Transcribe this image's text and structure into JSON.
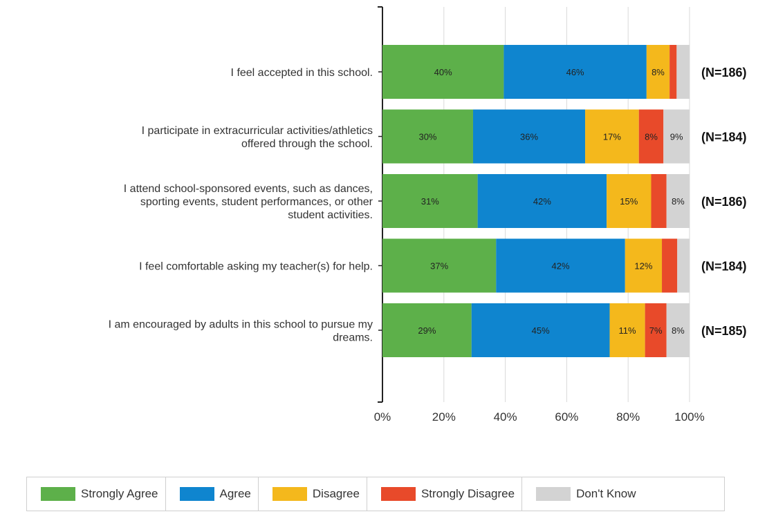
{
  "chart_data": {
    "type": "bar",
    "orientation": "horizontal",
    "stacked": true,
    "categories": [
      [
        "I feel accepted in this school."
      ],
      [
        "I participate in extracurricular activities/athletics",
        "offered through the school."
      ],
      [
        "I attend school-sponsored events, such as dances,",
        "sporting events, student performances, or other",
        "student activities."
      ],
      [
        "I feel comfortable asking my teacher(s) for help."
      ],
      [
        "I am encouraged by adults in this school to pursue my",
        "dreams."
      ]
    ],
    "n_labels": [
      "(N=186)",
      "(N=184)",
      "(N=186)",
      "(N=184)",
      "(N=185)"
    ],
    "series": [
      {
        "name": "Strongly Agree",
        "color": "#5db04a",
        "values": [
          39.5,
          29.5,
          31,
          37,
          29
        ],
        "labels": [
          "40%",
          "30%",
          "31%",
          "37%",
          "29%"
        ]
      },
      {
        "name": "Agree",
        "color": "#0f85cf",
        "values": [
          46.5,
          36.5,
          42,
          42,
          45
        ],
        "labels": [
          "46%",
          "36%",
          "42%",
          "42%",
          "45%"
        ]
      },
      {
        "name": "Disagree",
        "color": "#f4b81c",
        "values": [
          7.5,
          17.5,
          14.5,
          12,
          11.5
        ],
        "labels": [
          "8%",
          "17%",
          "15%",
          "12%",
          "11%"
        ]
      },
      {
        "name": "Strongly Disagree",
        "color": "#e84a2a",
        "values": [
          2.3,
          8,
          5,
          5,
          7
        ],
        "labels": [
          "",
          "8%",
          "",
          "",
          "7%"
        ]
      },
      {
        "name": "Don't Know",
        "color": "#d3d3d3",
        "values": [
          4.2,
          8.5,
          7.5,
          4,
          7.5
        ],
        "labels": [
          "",
          "9%",
          "8%",
          "",
          "8%"
        ]
      }
    ],
    "xlim": [
      0,
      100
    ],
    "xticks": [
      "0%",
      "20%",
      "40%",
      "60%",
      "80%",
      "100%"
    ],
    "grid": true,
    "legend_position": "bottom"
  }
}
